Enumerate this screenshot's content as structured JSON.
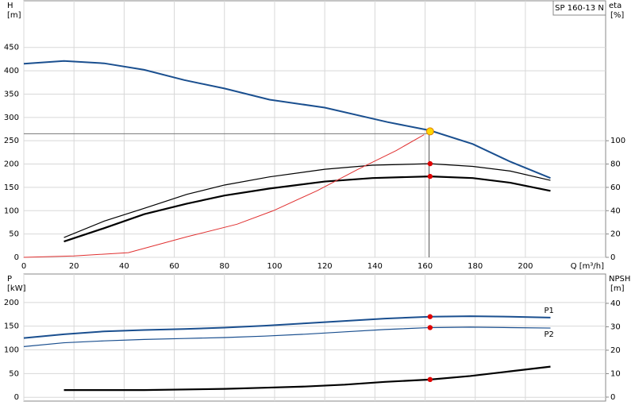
{
  "chart_data": [
    {
      "type": "line",
      "title": "SP 160-13 N",
      "xlabel": "Q [m³/h]",
      "ylabel": "H",
      "yunit": "[m]",
      "y2label": "eta",
      "y2unit": "[%]",
      "xlim": [
        0,
        232
      ],
      "xticks": [
        0,
        20,
        40,
        60,
        80,
        100,
        120,
        140,
        160,
        180,
        200
      ],
      "ylim": [
        0,
        550
      ],
      "yticks": [
        0,
        50,
        100,
        150,
        200,
        250,
        300,
        350,
        400,
        450
      ],
      "y2lim": [
        0,
        220
      ],
      "y2ticks": [
        0,
        20,
        40,
        60,
        80,
        100
      ],
      "grid": true,
      "show_xtick_labels": true,
      "series": [
        {
          "color": "#1a4f8f",
          "width": 2,
          "axis": "y",
          "x": [
            0,
            16,
            32,
            48,
            64,
            80,
            98,
            120,
            145,
            162,
            179,
            194,
            210
          ],
          "values": [
            415,
            421,
            416,
            402,
            380,
            362,
            338,
            321,
            290,
            272,
            243,
            205,
            170
          ]
        },
        {
          "color": "#000000",
          "width": 1.2,
          "axis": "y2",
          "x": [
            16,
            32,
            48,
            65,
            80,
            98,
            120,
            139,
            162,
            179,
            194,
            210
          ],
          "values": [
            17,
            31,
            42,
            54,
            62,
            69,
            75.5,
            79,
            80.3,
            78,
            74,
            66
          ]
        },
        {
          "color": "#000000",
          "width": 2.2,
          "axis": "y2",
          "x": [
            16,
            32,
            48,
            65,
            80,
            98,
            120,
            139,
            162,
            179,
            194,
            210
          ],
          "values": [
            13.6,
            25,
            37,
            46,
            53,
            59,
            65,
            68,
            69.4,
            68,
            64,
            57
          ]
        },
        {
          "color": "#e03030",
          "width": 1,
          "axis": "y",
          "x": [
            0,
            20,
            41.7,
            65,
            85,
            99.5,
            117,
            133,
            148.5,
            159.6
          ],
          "values": [
            0,
            3,
            10,
            44,
            71,
            100,
            143,
            188,
            229,
            263
          ]
        }
      ],
      "markers": [
        {
          "x": 162,
          "y": 270,
          "axis": "y",
          "color": "#ffd700"
        },
        {
          "x": 162,
          "y": 80.3,
          "axis": "y2",
          "color": "#e00000"
        },
        {
          "x": 162,
          "y": 69.4,
          "axis": "y2",
          "color": "#e00000"
        }
      ],
      "ref_lines": {
        "x": 161.6,
        "y": 265
      }
    },
    {
      "type": "line",
      "ylabel": "P",
      "yunit": "[kW]",
      "y2label": "NPSH",
      "y2unit": "[m]",
      "xlim": [
        0,
        232
      ],
      "xticks": [
        0,
        20,
        40,
        60,
        80,
        100,
        120,
        140,
        160,
        180,
        200
      ],
      "ylim": [
        -8,
        260
      ],
      "yticks": [
        0,
        50,
        100,
        150,
        200
      ],
      "y2lim": [
        -1.7,
        52.5
      ],
      "y2ticks": [
        0,
        10,
        20,
        30,
        40
      ],
      "grid": true,
      "show_xtick_labels": false,
      "series": [
        {
          "name": "P1",
          "color": "#1a4f8f",
          "width": 2,
          "axis": "y",
          "x": [
            0,
            16,
            32,
            48,
            64,
            80,
            96,
            112,
            128,
            144,
            162,
            178,
            194,
            210
          ],
          "values": [
            125,
            133,
            139,
            142,
            144,
            147,
            151,
            156,
            161,
            166,
            170,
            171,
            170,
            168
          ]
        },
        {
          "name": "P2",
          "color": "#1a4f8f",
          "width": 1.2,
          "axis": "y",
          "x": [
            0,
            16,
            32,
            48,
            64,
            80,
            96,
            112,
            128,
            144,
            162,
            178,
            194,
            210
          ],
          "values": [
            107,
            115,
            119,
            122,
            124,
            126,
            129,
            133,
            138,
            143,
            147,
            148,
            147,
            146
          ]
        },
        {
          "color": "#000000",
          "width": 2.2,
          "axis": "y2",
          "x": [
            16,
            48,
            80,
            96,
            112,
            128,
            144,
            162,
            178,
            194,
            210
          ],
          "values": [
            3,
            3,
            3.5,
            4,
            4.5,
            5.3,
            6.5,
            7.5,
            9,
            11,
            13
          ]
        }
      ],
      "markers": [
        {
          "x": 162,
          "y": 170,
          "axis": "y",
          "color": "#e00000"
        },
        {
          "x": 162,
          "y": 147,
          "axis": "y",
          "color": "#e00000"
        },
        {
          "x": 162,
          "y": 7.5,
          "axis": "y2",
          "color": "#e00000"
        }
      ]
    }
  ]
}
